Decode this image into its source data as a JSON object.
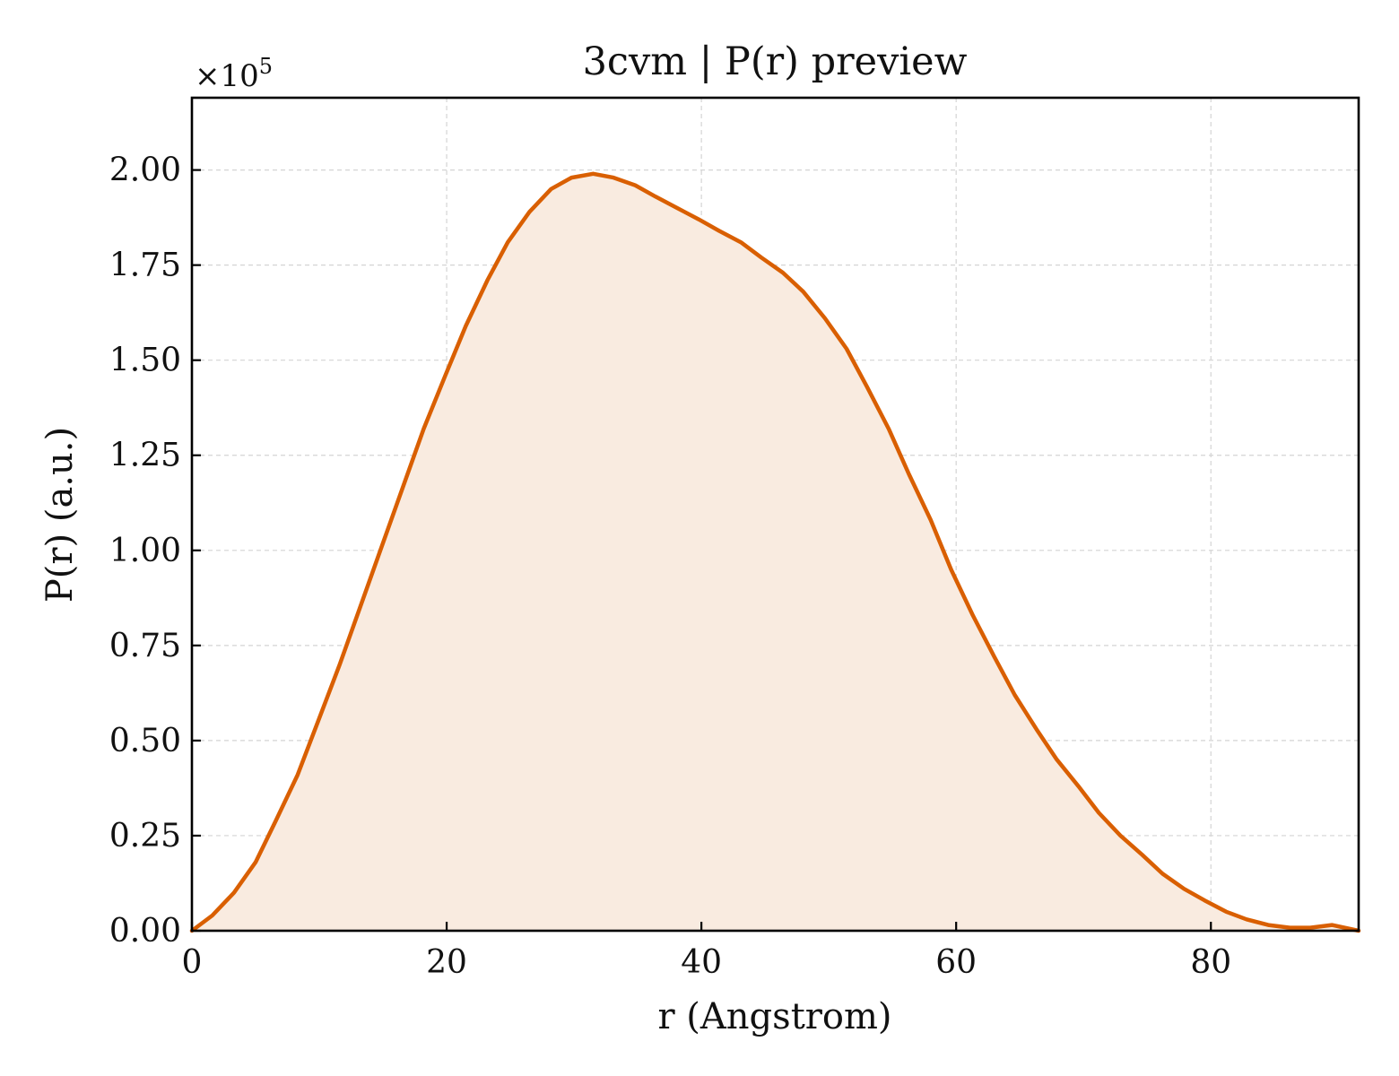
{
  "chart_data": {
    "type": "area",
    "title": "3cvm | P(r) preview",
    "xlabel": "r (Angstrom)",
    "ylabel": "P(r) (a.u.)",
    "y_multiplier_prefix": "×10",
    "y_multiplier_exponent": "5",
    "xlim": [
      0,
      91.6
    ],
    "ylim": [
      0,
      2.19
    ],
    "x_ticks": [
      0,
      20,
      40,
      60,
      80
    ],
    "x_tick_labels": [
      "0",
      "20",
      "40",
      "60",
      "80"
    ],
    "y_ticks": [
      0,
      0.25,
      0.5,
      0.75,
      1.0,
      1.25,
      1.5,
      1.75,
      2.0
    ],
    "y_tick_labels": [
      "0.00",
      "0.25",
      "0.50",
      "0.75",
      "1.00",
      "1.25",
      "1.50",
      "1.75",
      "2.00"
    ],
    "grid": true,
    "line_color": "#d95f02",
    "fill_color": "#f9ebe0",
    "series": [
      {
        "x": [
          0,
          1.6,
          3.3,
          5.0,
          6.6,
          8.3,
          9.9,
          11.6,
          13.2,
          14.9,
          16.6,
          18.2,
          19.9,
          21.5,
          23.2,
          24.8,
          26.5,
          28.2,
          29.8,
          31.5,
          33.1,
          34.8,
          36.4,
          38.1,
          39.8,
          41.4,
          43.1,
          44.7,
          46.4,
          48.0,
          49.7,
          51.4,
          53.0,
          54.7,
          56.3,
          58.0,
          59.6,
          61.3,
          63.0,
          64.6,
          66.3,
          67.9,
          69.6,
          71.2,
          72.9,
          74.6,
          76.2,
          77.9,
          79.5,
          81.2,
          82.8,
          84.5,
          86.2,
          87.8,
          89.5,
          91.6
        ],
        "y": [
          0.0,
          0.04,
          0.1,
          0.18,
          0.29,
          0.41,
          0.55,
          0.7,
          0.85,
          1.01,
          1.17,
          1.32,
          1.46,
          1.59,
          1.71,
          1.81,
          1.89,
          1.95,
          1.98,
          1.99,
          1.98,
          1.96,
          1.93,
          1.9,
          1.87,
          1.84,
          1.81,
          1.77,
          1.73,
          1.68,
          1.61,
          1.53,
          1.43,
          1.32,
          1.2,
          1.08,
          0.95,
          0.83,
          0.72,
          0.62,
          0.53,
          0.45,
          0.38,
          0.31,
          0.25,
          0.2,
          0.15,
          0.11,
          0.08,
          0.05,
          0.03,
          0.015,
          0.008,
          0.008,
          0.015,
          0.0
        ]
      }
    ]
  }
}
